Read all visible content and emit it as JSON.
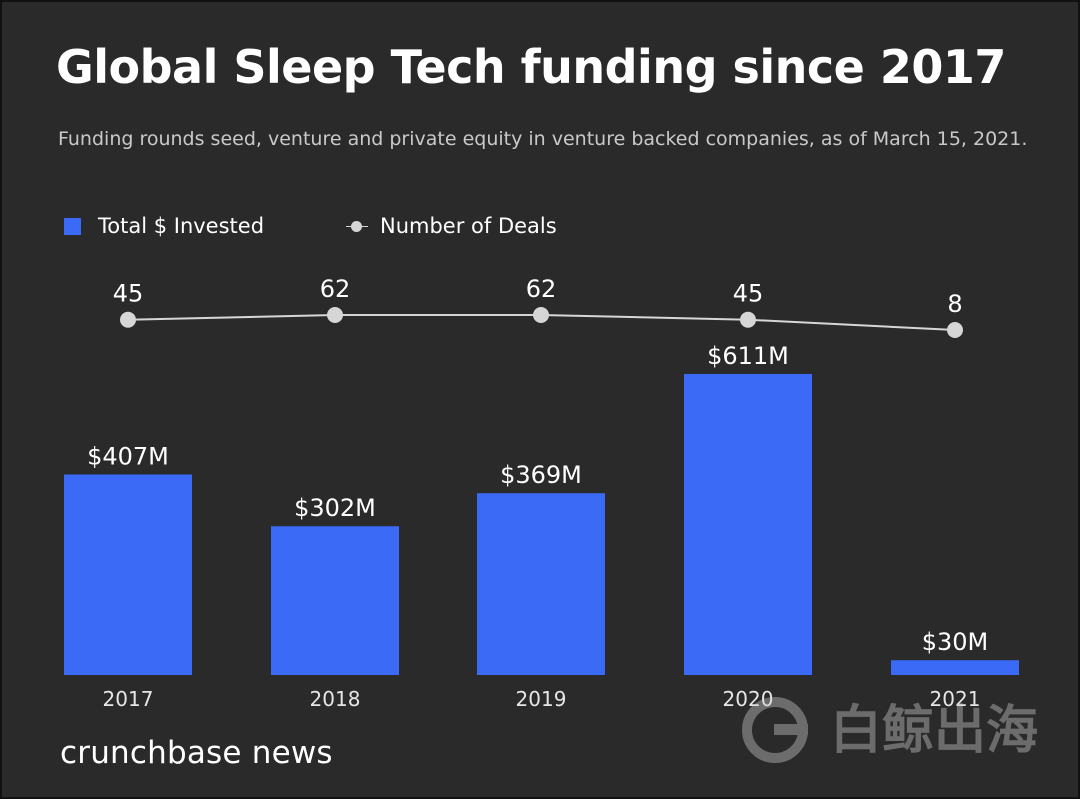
{
  "title": "Global Sleep Tech funding since 2017",
  "subtitle": "Funding rounds seed, venture and private equity in venture backed companies, as of March 15, 2021.",
  "legend": {
    "invested_label": "Total $ Invested",
    "deals_label": "Number of Deals"
  },
  "brand": "crunchbase news",
  "watermark_text": "白鲸出海",
  "colors": {
    "background": "#2a2a2a",
    "bar": "#3b6af6",
    "line": "#d6d6d6",
    "text": "#ffffff"
  },
  "chart_data": {
    "type": "bar",
    "categories": [
      "2017",
      "2018",
      "2019",
      "2020",
      "2021"
    ],
    "series": [
      {
        "name": "Total $ Invested",
        "type": "bar",
        "values": [
          407,
          302,
          369,
          611,
          30
        ],
        "labels": [
          "$407M",
          "$302M",
          "$369M",
          "$611M",
          "$30M"
        ]
      },
      {
        "name": "Number of Deals",
        "type": "line",
        "values": [
          45,
          62,
          62,
          45,
          8
        ],
        "labels": [
          "45",
          "62",
          "62",
          "45",
          "8"
        ]
      }
    ]
  }
}
